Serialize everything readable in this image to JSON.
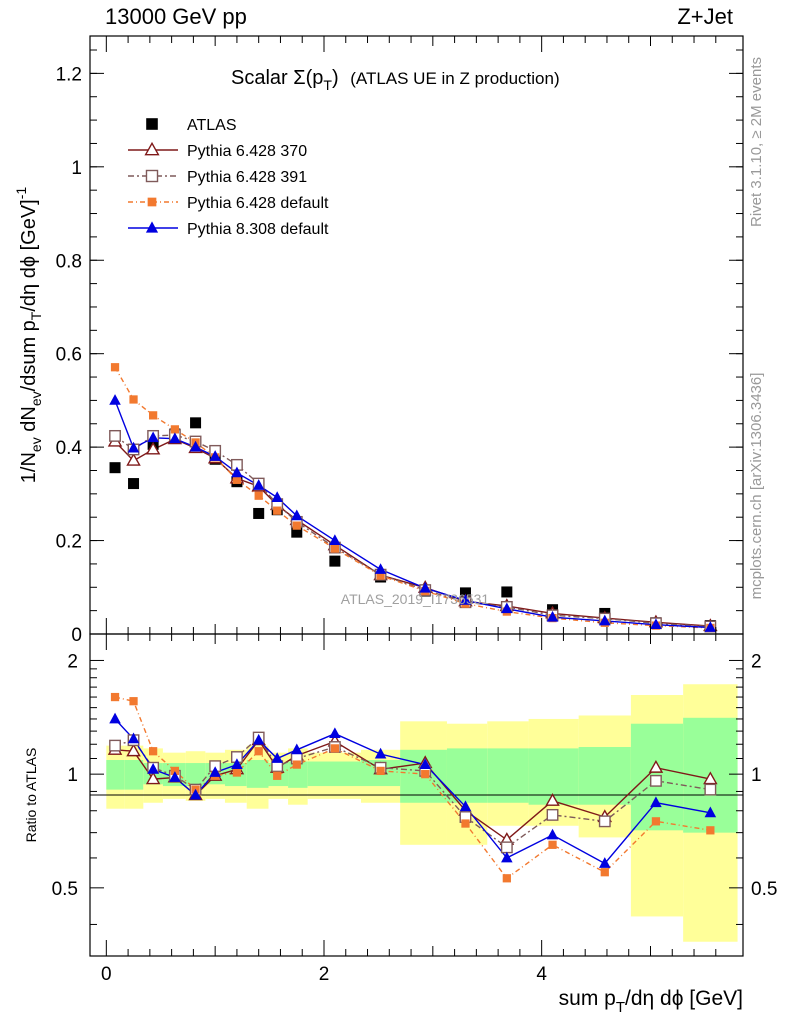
{
  "header": {
    "left": "13000 GeV pp",
    "right": "Z+Jet"
  },
  "side_labels": {
    "rivet": "Rivet 3.1.10, ≥ 2M events",
    "mcplots": "mcplots.cern.ch [arXiv:1306.3436]"
  },
  "watermark": "ATLAS_2019_I1736531",
  "colors": {
    "ATLAS": "#000000",
    "Pythia 6.428 370": "#7f1919",
    "Pythia 6.428 391": "#7f5a5a",
    "Pythia 6.428 default": "#f2792f",
    "Pythia 8.308 default": "#0000e0",
    "band_inner": "#99ff99",
    "band_outer": "#ffff99"
  },
  "chart_data": [
    {
      "type": "line",
      "title_main": "Scalar Σ(p",
      "title_sub": "T",
      "title_close": ")",
      "title_paren": "(ATLAS UE in Z production)",
      "ylabel": "1/N_ev dN_ev/dsum p_T/dη dϕ [GeV]^-1",
      "xlim": [
        -0.15,
        5.85
      ],
      "ylim": [
        0,
        1.28
      ],
      "yticks": [
        "0",
        "0.2",
        "0.4",
        "0.6",
        "0.8",
        "1",
        "1.2"
      ],
      "legend_position": "top-left",
      "x": [
        0.08,
        0.25,
        0.43,
        0.63,
        0.82,
        1.0,
        1.2,
        1.4,
        1.57,
        1.75,
        2.1,
        2.52,
        2.93,
        3.3,
        3.68,
        4.1,
        4.58,
        5.05,
        5.55
      ],
      "series": [
        {
          "name": "ATLAS",
          "marker": "filled-square",
          "values": [
            0.356,
            0.322,
            0.406,
            0.428,
            0.452,
            0.374,
            0.326,
            0.258,
            0.266,
            0.218,
            0.156,
            0.122,
            0.092,
            0.088,
            0.09,
            0.052,
            0.044,
            0.024,
            0.018
          ]
        },
        {
          "name": "Pythia 6.428 370",
          "marker": "open-triangle",
          "values": [
            0.412,
            0.371,
            0.395,
            0.417,
            0.398,
            0.376,
            0.333,
            0.316,
            0.276,
            0.244,
            0.19,
            0.126,
            0.099,
            0.07,
            0.06,
            0.044,
            0.034,
            0.025,
            0.017
          ]
        },
        {
          "name": "Pythia 6.428 391",
          "marker": "open-square",
          "values": [
            0.424,
            0.395,
            0.424,
            0.426,
            0.412,
            0.392,
            0.362,
            0.322,
            0.278,
            0.24,
            0.185,
            0.127,
            0.094,
            0.068,
            0.058,
            0.04,
            0.033,
            0.023,
            0.016
          ]
        },
        {
          "name": "Pythia 6.428 default",
          "marker": "filled-square-small",
          "values": [
            0.571,
            0.502,
            0.468,
            0.438,
            0.41,
            0.378,
            0.33,
            0.296,
            0.264,
            0.232,
            0.183,
            0.125,
            0.092,
            0.065,
            0.048,
            0.034,
            0.024,
            0.018,
            0.013
          ]
        },
        {
          "name": "Pythia 8.308 default",
          "marker": "filled-triangle",
          "values": [
            0.5,
            0.398,
            0.42,
            0.418,
            0.4,
            0.38,
            0.345,
            0.318,
            0.292,
            0.253,
            0.2,
            0.138,
            0.098,
            0.072,
            0.054,
            0.036,
            0.028,
            0.02,
            0.014
          ]
        }
      ]
    },
    {
      "type": "line",
      "ylabel": "Ratio to ATLAS",
      "xlabel_main": "sum p",
      "xlabel_sub": "T",
      "xlabel_rest": "/dη dϕ [GeV]",
      "xlim": [
        -0.15,
        5.85
      ],
      "ylim": [
        0.33,
        2.35
      ],
      "yticks": [
        "0.5",
        "1",
        "2"
      ],
      "xticks": [
        "0",
        "2",
        "4"
      ],
      "x": [
        0.08,
        0.25,
        0.43,
        0.63,
        0.82,
        1.0,
        1.2,
        1.4,
        1.57,
        1.75,
        2.1,
        2.52,
        2.93,
        3.3,
        3.68,
        4.1,
        4.58,
        5.05,
        5.55
      ],
      "bin_edges": [
        0,
        0.17,
        0.34,
        0.52,
        0.73,
        0.91,
        1.09,
        1.29,
        1.49,
        1.67,
        1.85,
        2.34,
        2.7,
        3.13,
        3.5,
        3.88,
        4.34,
        4.82,
        5.3,
        5.8
      ],
      "band_inner": {
        "lo": [
          0.91,
          0.91,
          0.94,
          0.93,
          0.93,
          0.94,
          0.93,
          0.92,
          0.93,
          0.92,
          0.93,
          0.93,
          0.84,
          0.84,
          0.84,
          0.83,
          0.83,
          0.71,
          0.7
        ],
        "hi": [
          1.09,
          1.09,
          1.07,
          1.07,
          1.07,
          1.07,
          1.07,
          1.09,
          1.07,
          1.08,
          1.08,
          1.09,
          1.16,
          1.17,
          1.17,
          1.17,
          1.18,
          1.36,
          1.41
        ]
      },
      "band_outer": {
        "lo": [
          0.81,
          0.81,
          0.84,
          0.86,
          0.85,
          0.86,
          0.84,
          0.81,
          0.86,
          0.83,
          0.86,
          0.84,
          0.65,
          0.65,
          0.73,
          0.73,
          0.68,
          0.42,
          0.36
        ],
        "hi": [
          1.19,
          1.19,
          1.17,
          1.14,
          1.15,
          1.14,
          1.16,
          1.19,
          1.14,
          1.17,
          1.14,
          1.16,
          1.38,
          1.36,
          1.38,
          1.4,
          1.43,
          1.62,
          1.73
        ]
      },
      "series": [
        {
          "name": "Pythia 6.428 370",
          "marker": "open-triangle",
          "values": [
            1.16,
            1.15,
            0.97,
            0.98,
            0.88,
            0.99,
            1.03,
            1.23,
            1.04,
            1.12,
            1.22,
            1.03,
            1.07,
            0.8,
            0.67,
            0.85,
            0.77,
            1.04,
            0.97
          ]
        },
        {
          "name": "Pythia 6.428 391",
          "marker": "open-square",
          "values": [
            1.19,
            1.23,
            1.04,
            0.99,
            0.91,
            1.05,
            1.11,
            1.25,
            1.05,
            1.1,
            1.18,
            1.04,
            1.02,
            0.77,
            0.64,
            0.78,
            0.75,
            0.96,
            0.91
          ]
        },
        {
          "name": "Pythia 6.428 default",
          "marker": "filled-square-small",
          "values": [
            1.6,
            1.56,
            1.15,
            1.02,
            0.91,
            0.99,
            1.01,
            1.15,
            0.99,
            1.06,
            1.17,
            1.02,
            1.0,
            0.74,
            0.53,
            0.65,
            0.55,
            0.75,
            0.71
          ]
        },
        {
          "name": "Pythia 8.308 default",
          "marker": "filled-triangle",
          "values": [
            1.4,
            1.24,
            1.03,
            0.98,
            0.88,
            1.01,
            1.06,
            1.23,
            1.1,
            1.16,
            1.28,
            1.13,
            1.06,
            0.82,
            0.6,
            0.69,
            0.58,
            0.84,
            0.79
          ]
        }
      ]
    }
  ]
}
